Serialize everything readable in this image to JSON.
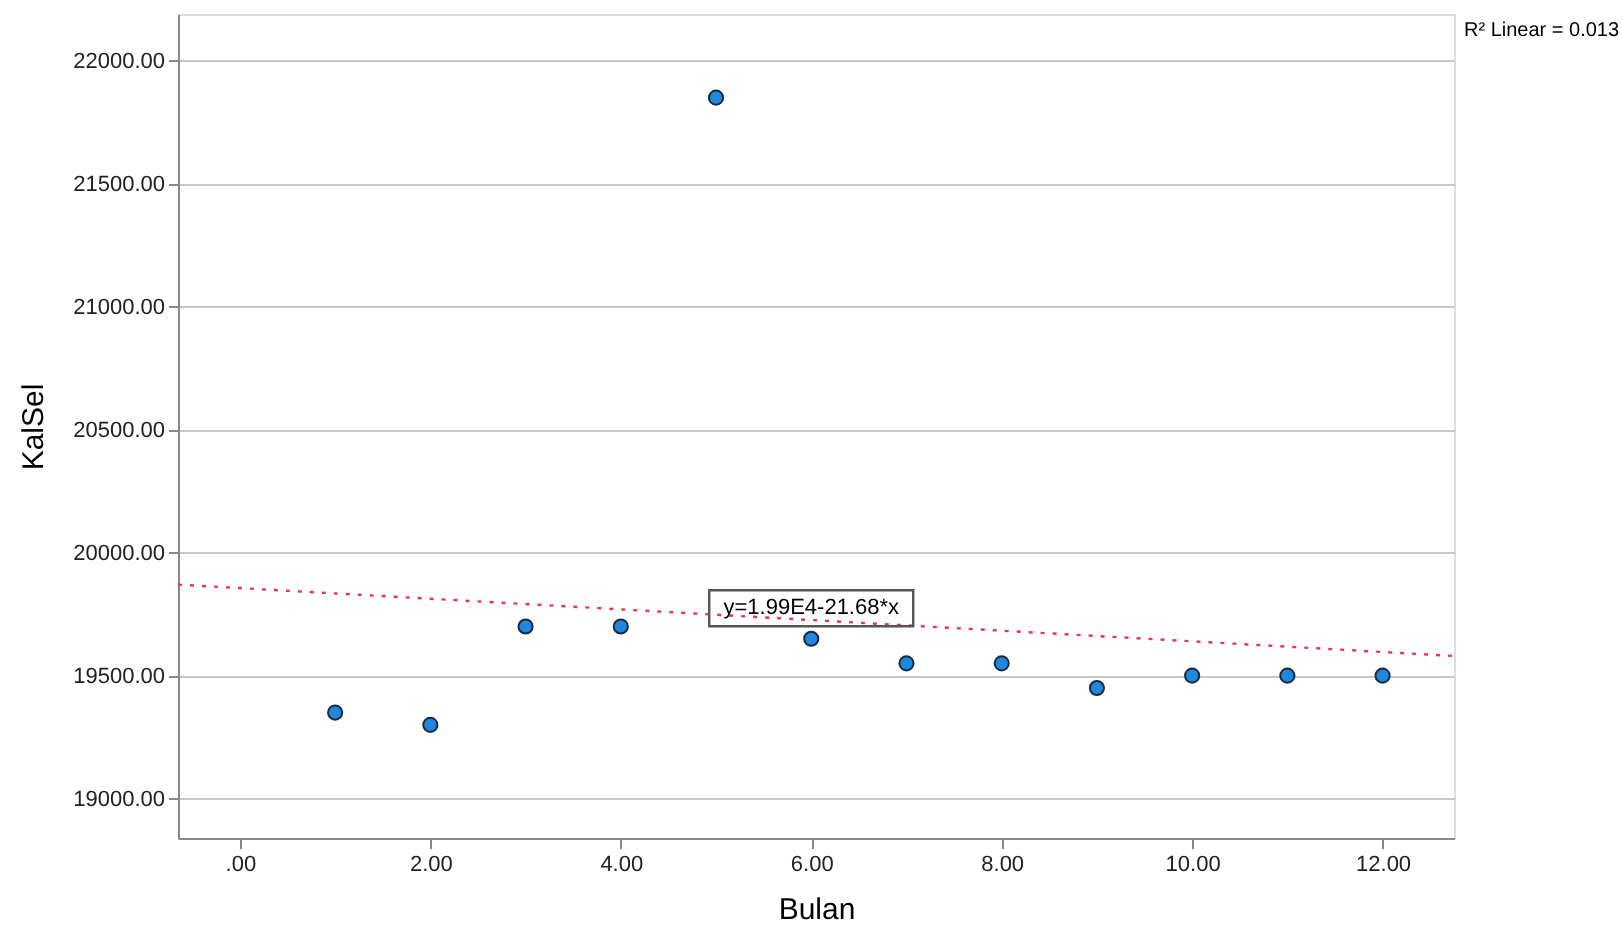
{
  "chart_data": {
    "type": "scatter",
    "xlabel": "Bulan",
    "ylabel": "KalSel",
    "x": [
      1,
      2,
      3,
      4,
      5,
      6,
      7,
      8,
      9,
      10,
      11,
      12
    ],
    "series": [
      {
        "color": "#1e88e0",
        "marker": "circle",
        "values": [
          19350,
          19300,
          19700,
          19700,
          21850,
          19650,
          19550,
          19550,
          19450,
          19500,
          19500,
          19500
        ]
      },
      {
        "type": "line",
        "color": "#e8345a",
        "line_style": "dotted",
        "x": [
          -0.65,
          12.75
        ],
        "values": [
          19870,
          19580
        ]
      }
    ],
    "xlim": [
      -0.65,
      12.75
    ],
    "ylim": [
      18840,
      22190
    ],
    "xticks": [
      {
        "value": 0,
        "label": ".00"
      },
      {
        "value": 2,
        "label": "2.00"
      },
      {
        "value": 4,
        "label": "4.00"
      },
      {
        "value": 6,
        "label": "6.00"
      },
      {
        "value": 8,
        "label": "8.00"
      },
      {
        "value": 10,
        "label": "10.00"
      },
      {
        "value": 12,
        "label": "12.00"
      }
    ],
    "yticks": [
      {
        "value": 19000,
        "label": "19000.00"
      },
      {
        "value": 19500,
        "label": "19500.00"
      },
      {
        "value": 20000,
        "label": "20000.00"
      },
      {
        "value": 20500,
        "label": "20500.00"
      },
      {
        "value": 21000,
        "label": "21000.00"
      },
      {
        "value": 21500,
        "label": "21500.00"
      },
      {
        "value": 22000,
        "label": "22000.00"
      }
    ],
    "grid": "y",
    "annotations": [
      {
        "text": "y=1.99E4-21.68*x",
        "x": 6.0,
        "y": 19774
      },
      "R² Linear = 0.013"
    ]
  }
}
